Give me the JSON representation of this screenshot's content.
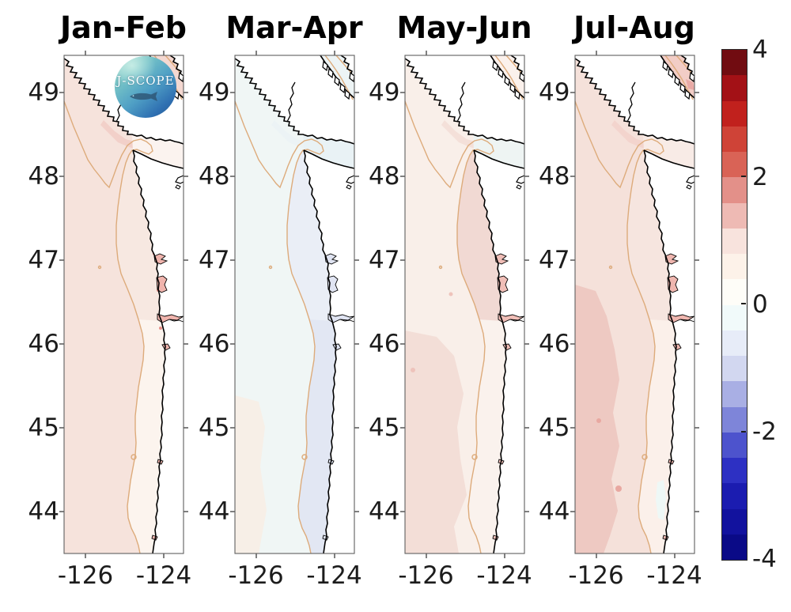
{
  "figure": {
    "background": "#ffffff",
    "titles": [
      "Jan-Feb",
      "Mar-Apr",
      "May-Jun",
      "Jul-Aug"
    ],
    "y_tick_labels": [
      "49",
      "48",
      "47",
      "46",
      "45",
      "44"
    ],
    "x_tick_labels": [
      "-126",
      "-124"
    ],
    "colorbar": {
      "tick_labels": [
        "4",
        "2",
        "0",
        "-2",
        "-4"
      ],
      "tick_values": [
        4,
        2,
        0,
        -2,
        -4
      ],
      "range": [
        -4,
        4
      ],
      "segment_colors_top_to_bottom": [
        "#710c11",
        "#a31116",
        "#c1211d",
        "#cf4337",
        "#d96356",
        "#e39089",
        "#eebab4",
        "#f8e3dd",
        "#fdf2e9",
        "#fefdf8",
        "#f1fafa",
        "#e7ecf8",
        "#d2d7f0",
        "#a9afe4",
        "#7e85d9",
        "#4d53cd",
        "#2d30c3",
        "#1b1cb0",
        "#12129e",
        "#0a0a87"
      ]
    },
    "logo": {
      "text": "J-SCOPE"
    },
    "map_colors": {
      "land": "#ffffff",
      "coastline": "#000000",
      "bathymetry_contour": "#ddab7b",
      "frame": "#5f5f5f",
      "tick": "#3c3c3c"
    },
    "panels": [
      {
        "title": "Jan-Feb",
        "ocean": {
          "base": "#f6e3dc",
          "coast_band_north": "#f7e8e1",
          "coast_band_south": "#fcf4ee",
          "offshore": "#f6e3dc",
          "strait": "#fbf3ef",
          "corner_water": "#f4d8d1",
          "hook": "#f2d0c9",
          "estuary": "#f0b4ad",
          "spot": "#e78f88"
        }
      },
      {
        "title": "Mar-Apr",
        "ocean": {
          "base": "#f0f6f5",
          "coast_band_north": "#eaeef6",
          "coast_band_south": "#e2e7f3",
          "offshore": "#f7efe7",
          "strait": "#e9f2f5",
          "corner_water": "#edf4f5",
          "hook": "#ecf3f5",
          "estuary": "#e0e4f2",
          "spot": "#d8ddee"
        }
      },
      {
        "title": "May-Jun",
        "ocean": {
          "base": "#f9efe9",
          "coast_band_north": "#f1d9d3",
          "coast_band_south": "#faf2ed",
          "offshore": "#f3ded7",
          "strait": "#eef4f3",
          "corner_water": "#fbf1ec",
          "hook": "#f4e0d9",
          "estuary": "#f0beb7",
          "spot": "#eec3bb"
        }
      },
      {
        "title": "Jul-Aug",
        "ocean": {
          "base": "#f5e1da",
          "coast_band_north": "#f6e5df",
          "coast_band_south": "#fbf0ea",
          "offshore": "#eec9c2",
          "strait": "#f8ebe6",
          "corner_water": "#f2cdc6",
          "hook": "#f3d4cd",
          "estuary": "#efb6af",
          "spot": "#e8a8a1",
          "corner_spot": "#e9aaa6",
          "coast_cyan": "#eef8f6"
        }
      }
    ]
  }
}
